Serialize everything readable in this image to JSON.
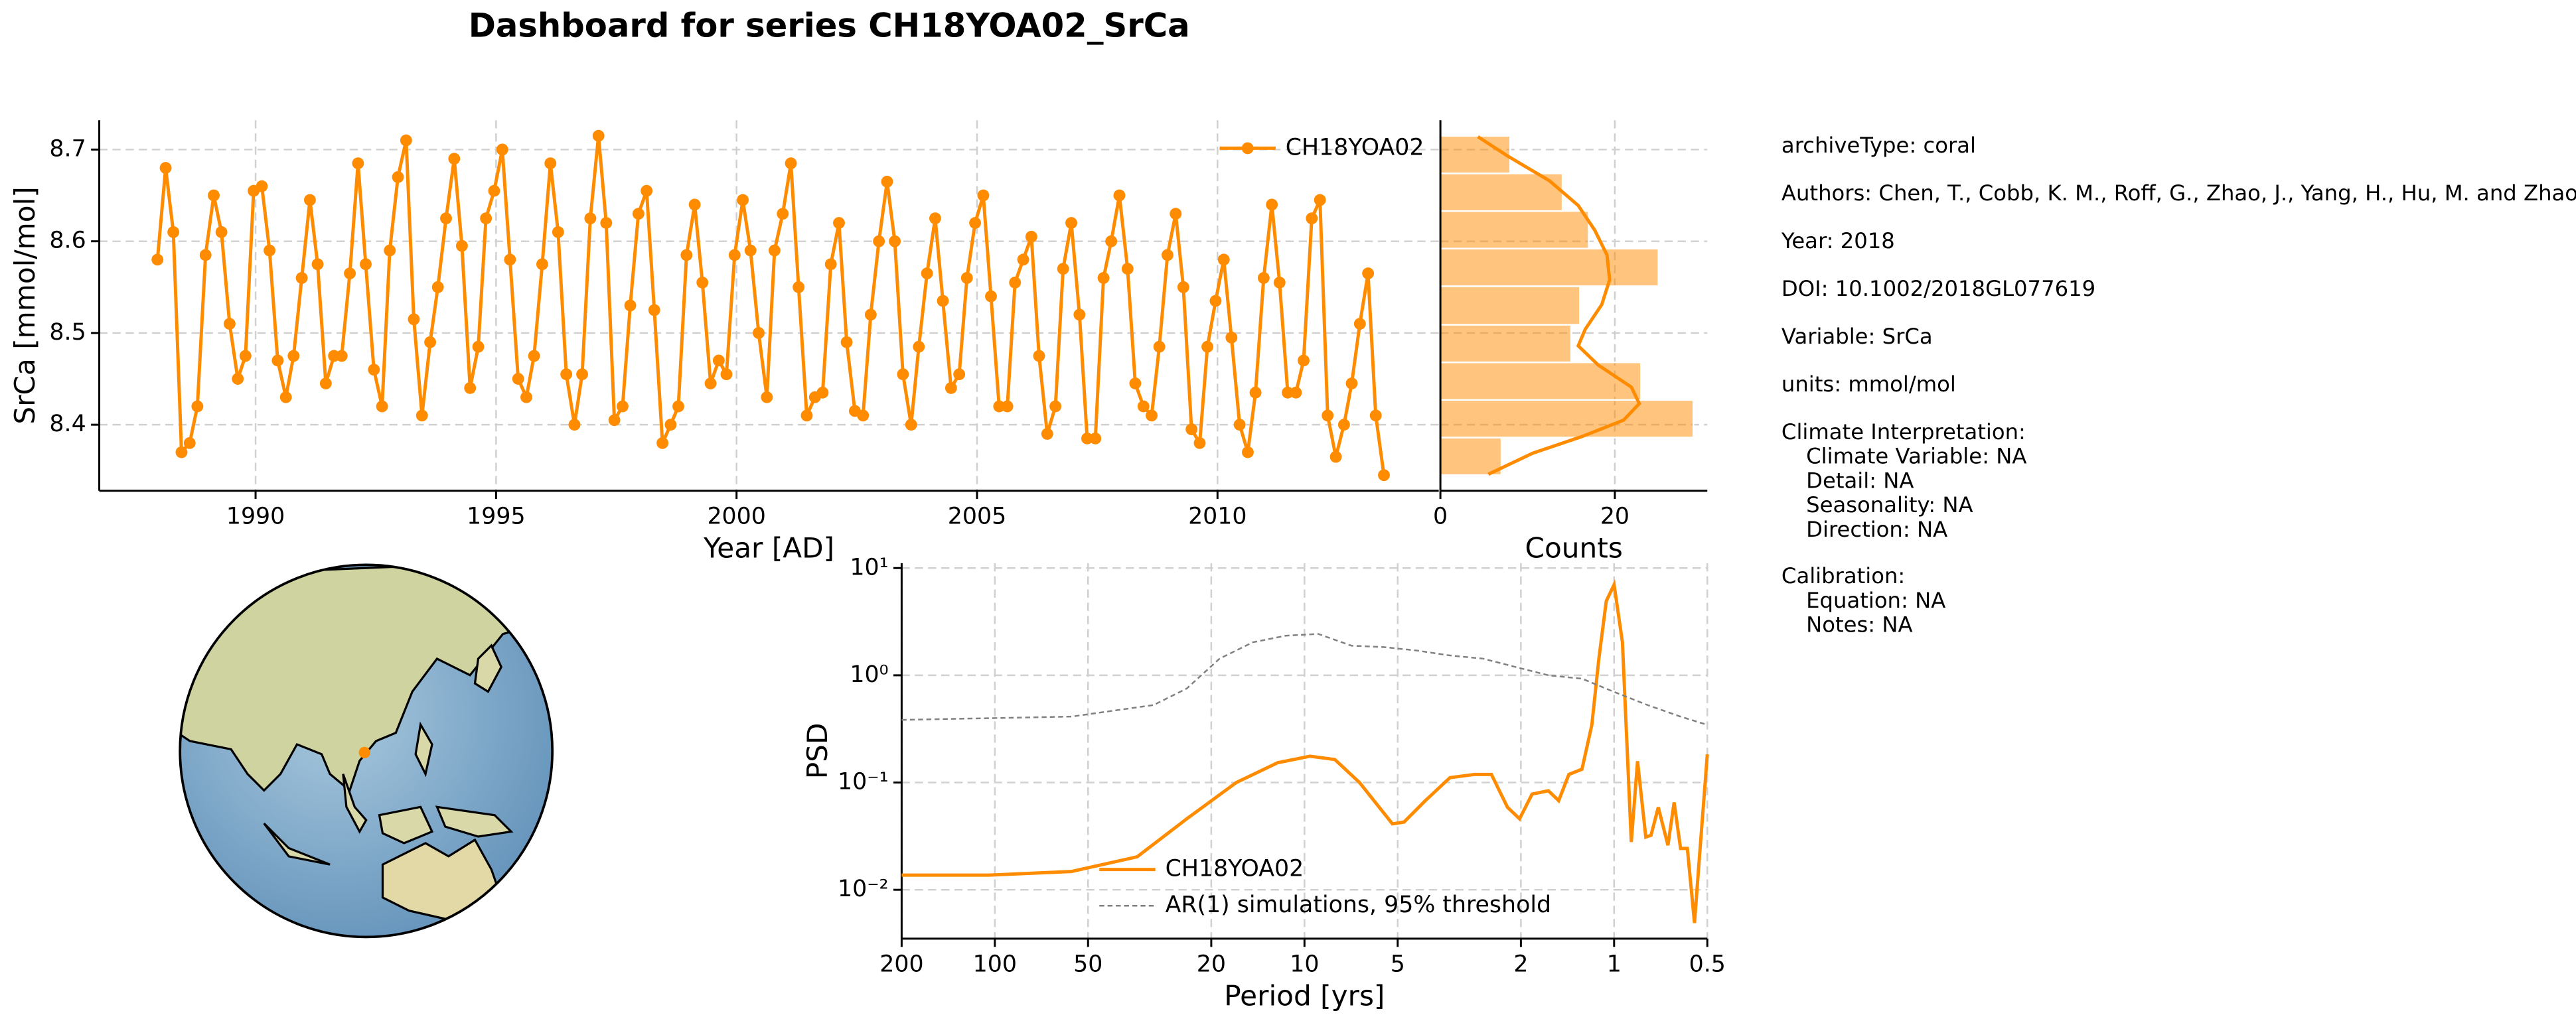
{
  "title": "Dashboard for series CH18YOA02_SrCa",
  "chart_data": [
    {
      "type": "line",
      "xlabel": "Year [AD]",
      "ylabel": "SrCa [mmol/mol]",
      "grid": true,
      "legend": "upper right",
      "xlim": [
        1986.75,
        2014.6
      ],
      "xticks": [
        1990,
        1995,
        2000,
        2005,
        2010
      ],
      "ylim": [
        8.328,
        8.732
      ],
      "yticks": [
        8.4,
        8.5,
        8.6,
        8.7
      ],
      "x": [
        1987.96,
        1988.13,
        1988.29,
        1988.46,
        1988.63,
        1988.79,
        1988.96,
        1989.13,
        1989.29,
        1989.46,
        1989.63,
        1989.79,
        1989.96,
        1990.13,
        1990.29,
        1990.46,
        1990.63,
        1990.79,
        1990.96,
        1991.13,
        1991.29,
        1991.46,
        1991.63,
        1991.79,
        1991.96,
        1992.13,
        1992.29,
        1992.46,
        1992.63,
        1992.79,
        1992.96,
        1993.13,
        1993.29,
        1993.46,
        1993.63,
        1993.79,
        1993.96,
        1994.13,
        1994.29,
        1994.46,
        1994.63,
        1994.79,
        1994.96,
        1995.13,
        1995.29,
        1995.46,
        1995.63,
        1995.79,
        1995.96,
        1996.13,
        1996.29,
        1996.46,
        1996.63,
        1996.79,
        1996.96,
        1997.13,
        1997.29,
        1997.46,
        1997.63,
        1997.79,
        1997.96,
        1998.13,
        1998.29,
        1998.46,
        1998.63,
        1998.79,
        1998.96,
        1999.13,
        1999.29,
        1999.46,
        1999.63,
        1999.79,
        1999.96,
        2000.13,
        2000.29,
        2000.46,
        2000.63,
        2000.79,
        2000.96,
        2001.13,
        2001.29,
        2001.46,
        2001.63,
        2001.79,
        2001.96,
        2002.13,
        2002.29,
        2002.46,
        2002.63,
        2002.79,
        2002.96,
        2003.13,
        2003.29,
        2003.46,
        2003.63,
        2003.79,
        2003.96,
        2004.13,
        2004.29,
        2004.46,
        2004.63,
        2004.79,
        2004.96,
        2005.13,
        2005.29,
        2005.46,
        2005.63,
        2005.79,
        2005.96,
        2006.13,
        2006.29,
        2006.46,
        2006.63,
        2006.79,
        2006.96,
        2007.13,
        2007.29,
        2007.46,
        2007.63,
        2007.79,
        2007.96,
        2008.13,
        2008.29,
        2008.46,
        2008.63,
        2008.79,
        2008.96,
        2009.13,
        2009.29,
        2009.46,
        2009.63,
        2009.79,
        2009.96,
        2010.13,
        2010.29,
        2010.46,
        2010.63,
        2010.79,
        2010.96,
        2011.13,
        2011.29,
        2011.46,
        2011.63,
        2011.79,
        2011.96,
        2012.13,
        2012.29,
        2012.46,
        2012.63,
        2012.79,
        2012.96,
        2013.13,
        2013.29,
        2013.46
      ],
      "series": [
        {
          "name": "CH18YOA02",
          "color": "#ff8c00",
          "values": [
            8.58,
            8.68,
            8.61,
            8.37,
            8.38,
            8.42,
            8.585,
            8.65,
            8.61,
            8.51,
            8.45,
            8.475,
            8.655,
            8.66,
            8.59,
            8.47,
            8.43,
            8.475,
            8.56,
            8.645,
            8.575,
            8.445,
            8.475,
            8.475,
            8.565,
            8.685,
            8.575,
            8.46,
            8.42,
            8.59,
            8.67,
            8.71,
            8.515,
            8.41,
            8.49,
            8.55,
            8.625,
            8.69,
            8.595,
            8.44,
            8.485,
            8.625,
            8.655,
            8.7,
            8.58,
            8.45,
            8.43,
            8.475,
            8.575,
            8.685,
            8.61,
            8.455,
            8.4,
            8.455,
            8.625,
            8.715,
            8.62,
            8.405,
            8.42,
            8.53,
            8.63,
            8.655,
            8.525,
            8.38,
            8.4,
            8.42,
            8.585,
            8.64,
            8.555,
            8.445,
            8.47,
            8.455,
            8.585,
            8.645,
            8.59,
            8.5,
            8.43,
            8.59,
            8.63,
            8.685,
            8.55,
            8.41,
            8.43,
            8.435,
            8.575,
            8.62,
            8.49,
            8.415,
            8.41,
            8.52,
            8.6,
            8.665,
            8.6,
            8.455,
            8.4,
            8.485,
            8.565,
            8.625,
            8.535,
            8.44,
            8.455,
            8.56,
            8.62,
            8.65,
            8.54,
            8.42,
            8.42,
            8.555,
            8.58,
            8.605,
            8.475,
            8.39,
            8.42,
            8.57,
            8.62,
            8.52,
            8.385,
            8.385,
            8.56,
            8.6,
            8.65,
            8.57,
            8.445,
            8.42,
            8.41,
            8.485,
            8.585,
            8.63,
            8.55,
            8.395,
            8.38,
            8.485,
            8.535,
            8.58,
            8.495,
            8.4,
            8.37,
            8.435,
            8.56,
            8.64,
            8.555,
            8.435,
            8.435,
            8.47,
            8.625,
            8.645,
            8.41,
            8.365,
            8.4,
            8.445,
            8.51,
            8.565,
            8.41,
            8.345
          ]
        }
      ]
    },
    {
      "type": "histogram",
      "orientation": "horizontal",
      "xlabel": "Counts",
      "grid": true,
      "color": "#ff8c00",
      "xlim": [
        0,
        30.6
      ],
      "xticks": [
        0,
        20
      ],
      "ylim": [
        8.328,
        8.732
      ],
      "yticks": [
        8.4,
        8.5,
        8.6,
        8.7
      ],
      "bins": [
        8.345,
        8.386,
        8.427,
        8.468,
        8.509,
        8.551,
        8.592,
        8.633,
        8.674,
        8.715
      ],
      "counts": [
        7,
        29,
        23,
        15,
        16,
        25,
        17,
        14,
        8
      ],
      "kde": {
        "y": [
          8.714,
          8.693,
          8.666,
          8.639,
          8.612,
          8.585,
          8.558,
          8.531,
          8.504,
          8.486,
          8.465,
          8.441,
          8.423,
          8.405,
          8.387,
          8.369,
          8.346
        ],
        "counts": [
          4.3,
          7.7,
          12.5,
          15.8,
          17.7,
          19.1,
          19.4,
          18.5,
          16.6,
          15.8,
          18.1,
          21.9,
          22.8,
          21.0,
          16.2,
          10.6,
          5.5
        ]
      }
    },
    {
      "type": "line",
      "xlabel": "Period [yrs]",
      "ylabel": "PSD",
      "grid": true,
      "xscale": "log",
      "yscale": "log",
      "legend": "lower center",
      "xlim": [
        200,
        0.5
      ],
      "xticks": [
        200,
        100,
        50,
        20,
        10,
        5,
        2,
        1,
        0.5
      ],
      "ylim": [
        0.0035,
        11.1
      ],
      "yticks": [
        {
          "value": 0.01,
          "label": "10⁻²"
        },
        {
          "value": 0.1,
          "label": "10⁻¹"
        },
        {
          "value": 1,
          "label": "10⁰"
        },
        {
          "value": 10,
          "label": "10¹"
        }
      ],
      "series": [
        {
          "name": "CH18YOA02",
          "color": "#ff8c00",
          "style": "solid",
          "x": [
            200,
            104.5,
            56.6,
            34.7,
            24.0,
            16.6,
            12.2,
            9.6,
            7.98,
            6.64,
            5.2,
            4.77,
            4.07,
            3.39,
            2.82,
            2.49,
            2.21,
            2.02,
            1.84,
            1.63,
            1.51,
            1.4,
            1.27,
            1.18,
            1.12,
            1.06,
            1.0,
            0.94,
            0.88,
            0.84,
            0.79,
            0.76,
            0.72,
            0.67,
            0.64,
            0.61,
            0.58,
            0.55,
            0.53,
            0.5
          ],
          "values": [
            0.0137,
            0.0137,
            0.0148,
            0.0203,
            0.0459,
            0.1,
            0.153,
            0.176,
            0.164,
            0.1,
            0.0412,
            0.0428,
            0.0678,
            0.111,
            0.119,
            0.119,
            0.0588,
            0.0459,
            0.078,
            0.0838,
            0.0678,
            0.119,
            0.133,
            0.345,
            1.43,
            4.92,
            7.0,
            2.03,
            0.0279,
            0.158,
            0.031,
            0.0322,
            0.0588,
            0.026,
            0.0653,
            0.0243,
            0.0243,
            0.0049,
            0.0203,
            0.183
          ]
        },
        {
          "name": "AR(1) simulations, 95% threshold",
          "color": "#808080",
          "style": "dashed",
          "x": [
            200,
            56.6,
            30.7,
            24.0,
            18.8,
            14.7,
            11.5,
            9.02,
            7.06,
            5.52,
            4.33,
            3.39,
            2.65,
            2.07,
            1.63,
            1.27,
            1.0,
            0.78,
            0.61,
            0.5
          ],
          "values": [
            0.384,
            0.412,
            0.528,
            0.753,
            1.43,
            2.03,
            2.34,
            2.43,
            1.89,
            1.83,
            1.7,
            1.53,
            1.43,
            1.19,
            1.0,
            0.93,
            0.7,
            0.528,
            0.412,
            0.345
          ]
        }
      ]
    }
  ],
  "metadata": {
    "lines": [
      "archiveType: coral",
      "Authors: Chen, T., Cobb, K. M., Roff, G., Zhao, J., Yang, H., Hu, M. and Zhao, K.",
      "Year: 2018",
      "DOI: 10.1002/2018GL077619",
      "Variable: SrCa",
      "units: mmol/mol"
    ],
    "sections": [
      {
        "heading": "Climate Interpretation:",
        "items": [
          "Climate Variable: NA",
          "Detail: NA",
          "Seasonality: NA",
          "Direction: NA"
        ]
      },
      {
        "heading": "Calibration:",
        "items": [
          "Equation: NA",
          "Notes: NA"
        ]
      }
    ]
  }
}
